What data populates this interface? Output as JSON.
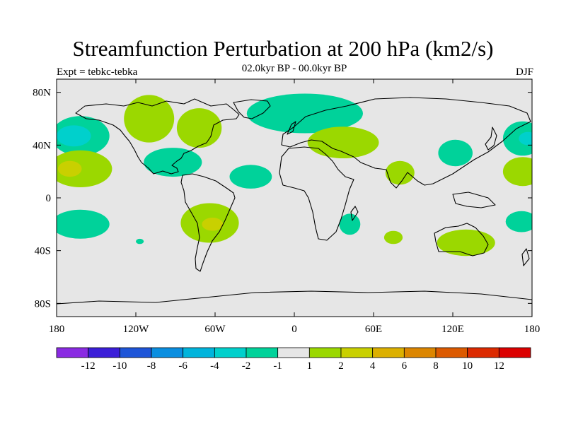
{
  "header": {
    "title": "Streamfunction Perturbation at 200 hPa (km2/s)",
    "left_label": "Expt = tebkc-tebka",
    "center_label": "02.0kyr BP - 00.0kyr BP",
    "right_label": "DJF"
  },
  "map": {
    "projection": "cylindrical-equidistant",
    "lon_range": [
      -180,
      180
    ],
    "lat_range": [
      -90,
      90
    ],
    "lon_ticks": [
      {
        "value": -180,
        "label": "180"
      },
      {
        "value": -120,
        "label": "120W"
      },
      {
        "value": -60,
        "label": "60W"
      },
      {
        "value": 0,
        "label": "0"
      },
      {
        "value": 60,
        "label": "60E"
      },
      {
        "value": 120,
        "label": "120E"
      },
      {
        "value": 180,
        "label": "180"
      }
    ],
    "lat_ticks": [
      {
        "value": 80,
        "label": "80N"
      },
      {
        "value": 40,
        "label": "40N"
      },
      {
        "value": 0,
        "label": "0"
      },
      {
        "value": -40,
        "label": "40S"
      },
      {
        "value": -80,
        "label": "80S"
      }
    ],
    "background_color": "#e6e6e6",
    "coastline_color": "#000000",
    "anomaly_regions": [
      {
        "lon": -162,
        "lat": 47,
        "rlon": 22,
        "rlat": 15,
        "level": -2
      },
      {
        "lon": -167,
        "lat": 47,
        "rlon": 13,
        "rlat": 8,
        "level": -3
      },
      {
        "lon": -162,
        "lat": 22,
        "rlon": 24,
        "rlat": 14,
        "level": 2
      },
      {
        "lon": -170,
        "lat": 22,
        "rlon": 9,
        "rlat": 6,
        "level": 4
      },
      {
        "lon": -110,
        "lat": 60,
        "rlon": 19,
        "rlat": 18,
        "level": 2
      },
      {
        "lon": -72,
        "lat": 53,
        "rlon": 17,
        "rlat": 15,
        "level": 2
      },
      {
        "lon": -92,
        "lat": 27,
        "rlon": 22,
        "rlat": 11,
        "level": -2
      },
      {
        "lon": -33,
        "lat": 16,
        "rlon": 16,
        "rlat": 9,
        "level": -2
      },
      {
        "lon": 8,
        "lat": 64,
        "rlon": 44,
        "rlat": 15,
        "level": -2
      },
      {
        "lon": 37,
        "lat": 42,
        "rlon": 27,
        "rlat": 12,
        "level": 2
      },
      {
        "lon": 80,
        "lat": 19,
        "rlon": 11,
        "rlat": 9,
        "level": 2
      },
      {
        "lon": 122,
        "lat": 34,
        "rlon": 13,
        "rlat": 10,
        "level": -2
      },
      {
        "lon": 173,
        "lat": 45,
        "rlon": 15,
        "rlat": 13,
        "level": -2
      },
      {
        "lon": 177,
        "lat": 45,
        "rlon": 7,
        "rlat": 5,
        "level": -3
      },
      {
        "lon": 173,
        "lat": 20,
        "rlon": 15,
        "rlat": 11,
        "level": 2
      },
      {
        "lon": -162,
        "lat": -20,
        "rlon": 22,
        "rlat": 11,
        "level": -2
      },
      {
        "lon": -64,
        "lat": -19,
        "rlon": 22,
        "rlat": 15,
        "level": 2
      },
      {
        "lon": -62,
        "lat": -20,
        "rlon": 8,
        "rlat": 5,
        "level": 4
      },
      {
        "lon": 42,
        "lat": -20,
        "rlon": 8,
        "rlat": 8,
        "level": -2
      },
      {
        "lon": 75,
        "lat": -30,
        "rlon": 7,
        "rlat": 5,
        "level": 2
      },
      {
        "lon": 130,
        "lat": -34,
        "rlon": 22,
        "rlat": 10,
        "level": 2
      },
      {
        "lon": 172,
        "lat": -18,
        "rlon": 12,
        "rlat": 8,
        "level": -2
      },
      {
        "lon": -117,
        "lat": -33,
        "rlon": 3,
        "rlat": 2,
        "level": -2
      }
    ]
  },
  "colorbar": {
    "colors": [
      "#8a2be2",
      "#3b1ed8",
      "#1e55d8",
      "#0a8ee0",
      "#00b4dc",
      "#00d0cc",
      "#00d29a",
      "#e6e6e6",
      "#9bd800",
      "#c9d000",
      "#dcb000",
      "#dc8600",
      "#dc5a00",
      "#dc2a00",
      "#dc0000"
    ],
    "labels": [
      "-12",
      "-10",
      "-8",
      "-6",
      "-4",
      "-2",
      "-1",
      "1",
      "2",
      "4",
      "6",
      "8",
      "10",
      "12"
    ]
  },
  "level_colors": {
    "-3": "#00d0cc",
    "-2": "#00d29a",
    "2": "#9bd800",
    "4": "#c9d000"
  }
}
